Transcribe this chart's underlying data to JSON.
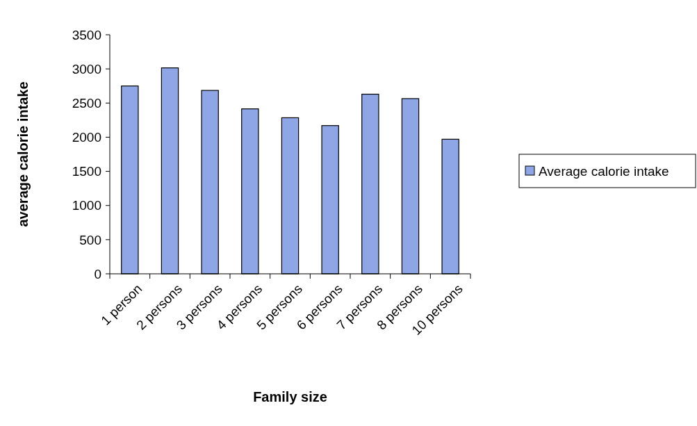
{
  "chart_data": {
    "type": "bar",
    "xlabel": "Family size",
    "ylabel": "average calorie intake",
    "categories": [
      "1 person",
      "2 persons",
      "3 persons",
      "4 persons",
      "5 persons",
      "6 persons",
      "7 persons",
      "8 persons",
      "10 persons"
    ],
    "series": [
      {
        "name": "Average calorie intake",
        "color": "#8ea6e6",
        "values": [
          2750,
          3015,
          2685,
          2415,
          2285,
          2170,
          2630,
          2565,
          1970
        ]
      }
    ],
    "ylim": [
      0,
      3500
    ],
    "yticks": [
      0,
      500,
      1000,
      1500,
      2000,
      2500,
      3000,
      3500
    ],
    "legend": "right",
    "grid": false
  }
}
